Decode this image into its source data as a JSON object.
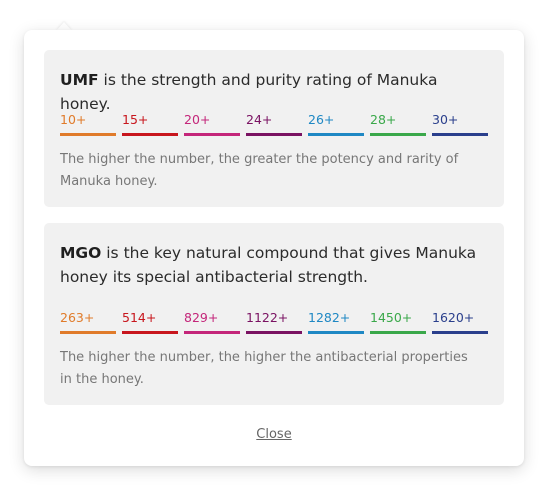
{
  "umf": {
    "term": "UMF",
    "heading_rest": " is the strength and purity rating of Manuka honey.",
    "scale": [
      {
        "label": "10+",
        "color": "#e07b2a"
      },
      {
        "label": "15+",
        "color": "#c8161d"
      },
      {
        "label": "20+",
        "color": "#c4267a"
      },
      {
        "label": "24+",
        "color": "#7a1262"
      },
      {
        "label": "26+",
        "color": "#1f88c4"
      },
      {
        "label": "28+",
        "color": "#3aa84a"
      },
      {
        "label": "30+",
        "color": "#2a3f8c"
      }
    ],
    "description": "The higher the number, the greater the potency and rarity of Manuka honey."
  },
  "mgo": {
    "term": "MGO",
    "heading_rest": " is the key natural compound that gives Manuka honey its special antibacterial strength.",
    "scale": [
      {
        "label": "263+",
        "color": "#e07b2a"
      },
      {
        "label": "514+",
        "color": "#c8161d"
      },
      {
        "label": "829+",
        "color": "#c4267a"
      },
      {
        "label": "1122+",
        "color": "#7a1262"
      },
      {
        "label": "1282+",
        "color": "#1f88c4"
      },
      {
        "label": "1450+",
        "color": "#3aa84a"
      },
      {
        "label": "1620+",
        "color": "#2a3f8c"
      }
    ],
    "description": "The higher the number, the higher the antibacterial properties in the honey."
  },
  "close_label": "Close"
}
